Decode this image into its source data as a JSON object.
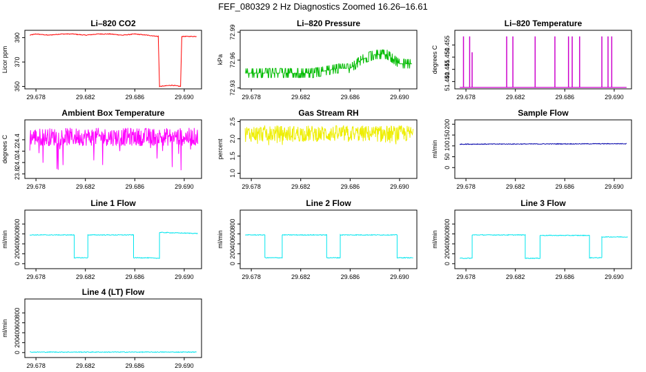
{
  "title": "FEF_080329  2 Hz Diagnostics Zoomed 16.26–16.61",
  "xticks": [
    "29.678",
    "29.682",
    "29.686",
    "29.690"
  ],
  "chart_data": [
    {
      "type": "line",
      "title": "Li–820 CO2",
      "ylabel": "Licor ppm",
      "color": "#ff0000",
      "xlim": [
        29.6771,
        29.6914
      ],
      "ylim": [
        348,
        396
      ],
      "yticks": [
        "350",
        "370",
        "390"
      ],
      "x": [
        29.6775,
        29.678,
        29.679,
        29.68,
        29.681,
        29.682,
        29.683,
        29.684,
        29.685,
        29.686,
        29.687,
        29.6879,
        29.688,
        29.688,
        29.689,
        29.6897,
        29.6898,
        29.6905,
        29.691
      ],
      "values": [
        392,
        393,
        392,
        393,
        393,
        392,
        393,
        393,
        392,
        393,
        392,
        391,
        351,
        350,
        351,
        350,
        391,
        391,
        391
      ]
    },
    {
      "type": "line",
      "title": "Li–820 Pressure",
      "ylabel": "kPa",
      "color": "#00bb00",
      "xlim": [
        29.6771,
        29.6914
      ],
      "ylim": [
        72.929,
        72.992
      ],
      "yticks": [
        "72.93",
        "72.96",
        "72.99"
      ],
      "x": [
        29.6775,
        29.68,
        29.683,
        29.685,
        29.686,
        29.687,
        29.688,
        29.689,
        29.69,
        29.691
      ],
      "values": [
        72.946,
        72.946,
        72.946,
        72.951,
        72.951,
        72.961,
        72.966,
        72.966,
        72.956,
        72.956
      ]
    },
    {
      "type": "line",
      "title": "Li–820 Temperature",
      "ylabel": "degrees C",
      "color": "#cc00cc",
      "xlim": [
        29.6771,
        29.6914
      ],
      "ylim": [
        51.437,
        51.461
      ],
      "yticks": [
        "51.440",
        "51.445",
        "51.450",
        "51.455"
      ],
      "baseline": 51.4376,
      "spikes": [
        {
          "x": 29.6778,
          "y": 51.4585
        },
        {
          "x": 29.6783,
          "y": 51.4585
        },
        {
          "x": 29.6785,
          "y": 51.452
        },
        {
          "x": 29.6813,
          "y": 51.4585
        },
        {
          "x": 29.6818,
          "y": 51.4585
        },
        {
          "x": 29.6836,
          "y": 51.4585
        },
        {
          "x": 29.6852,
          "y": 51.4585
        },
        {
          "x": 29.6863,
          "y": 51.4585
        },
        {
          "x": 29.6866,
          "y": 51.4585
        },
        {
          "x": 29.6872,
          "y": 51.4585
        },
        {
          "x": 29.689,
          "y": 51.4585
        },
        {
          "x": 29.6895,
          "y": 51.4585
        },
        {
          "x": 29.6898,
          "y": 51.4585
        }
      ]
    },
    {
      "type": "line",
      "title": "Ambient Box Temperature",
      "ylabel": "degrees C",
      "color": "#ff00ff",
      "xlim": [
        29.6771,
        29.6914
      ],
      "ylim": [
        23.72,
        24.75
      ],
      "yticks": [
        "23.8",
        "24.0",
        "24.2",
        "24.4"
      ],
      "mean": 24.45,
      "range": [
        23.85,
        24.65
      ]
    },
    {
      "type": "line",
      "title": "Gas Stream RH",
      "ylabel": "percent",
      "color": "#eeee00",
      "xlim": [
        29.6771,
        29.6914
      ],
      "ylim": [
        0.85,
        2.55
      ],
      "yticks": [
        "1.0",
        "1.5",
        "2.0",
        "2.5"
      ],
      "mean": 2.15,
      "range": [
        1.8,
        2.45
      ]
    },
    {
      "type": "line",
      "title": "Sample Flow",
      "ylabel": "ml/min",
      "color": "#0000aa",
      "xlim": [
        29.6771,
        29.6914
      ],
      "ylim": [
        -50,
        220
      ],
      "yticks": [
        "0",
        "50",
        "100",
        "150",
        "200"
      ],
      "x": [
        29.6775,
        29.691
      ],
      "values": [
        108,
        110
      ]
    },
    {
      "type": "line",
      "title": "Line 1 Flow",
      "ylabel": "ml/min",
      "color": "#00e5ee",
      "xlim": [
        29.6771,
        29.6914
      ],
      "ylim": [
        -100,
        1080
      ],
      "yticks": [
        "0",
        "200",
        "400",
        "600",
        "800"
      ],
      "x": [
        29.6775,
        29.6811,
        29.6811,
        29.6822,
        29.6822,
        29.6859,
        29.6859,
        29.6868,
        29.688,
        29.688,
        29.6911
      ],
      "values": [
        580,
        580,
        120,
        120,
        580,
        580,
        120,
        120,
        110,
        630,
        610
      ]
    },
    {
      "type": "line",
      "title": "Line 2 Flow",
      "ylabel": "ml/min",
      "color": "#00e5ee",
      "xlim": [
        29.6771,
        29.6914
      ],
      "ylim": [
        -100,
        1080
      ],
      "yticks": [
        "0",
        "200",
        "400",
        "600",
        "800"
      ],
      "x": [
        29.6775,
        29.6791,
        29.6791,
        29.6805,
        29.6805,
        29.6841,
        29.6841,
        29.6852,
        29.6852,
        29.6898,
        29.6898,
        29.6911
      ],
      "values": [
        580,
        580,
        120,
        120,
        580,
        580,
        120,
        120,
        580,
        580,
        120,
        120
      ]
    },
    {
      "type": "line",
      "title": "Line 3 Flow",
      "ylabel": "ml/min",
      "color": "#00e5ee",
      "xlim": [
        29.6771,
        29.6914
      ],
      "ylim": [
        -100,
        1080
      ],
      "yticks": [
        "0",
        "200",
        "400",
        "600",
        "800"
      ],
      "x": [
        29.6775,
        29.6785,
        29.6785,
        29.6828,
        29.6828,
        29.684,
        29.684,
        29.688,
        29.688,
        29.689,
        29.689,
        29.6911
      ],
      "values": [
        110,
        110,
        580,
        580,
        110,
        110,
        570,
        570,
        120,
        120,
        540,
        540
      ]
    },
    {
      "type": "line",
      "title": "Line 4 (LT) Flow",
      "ylabel": "ml/min",
      "color": "#00e5ee",
      "xlim": [
        29.6771,
        29.6914
      ],
      "ylim": [
        -100,
        1080
      ],
      "yticks": [
        "0",
        "200",
        "400",
        "600",
        "800"
      ],
      "x": [
        29.6775,
        29.691
      ],
      "values": [
        10,
        10
      ]
    }
  ]
}
